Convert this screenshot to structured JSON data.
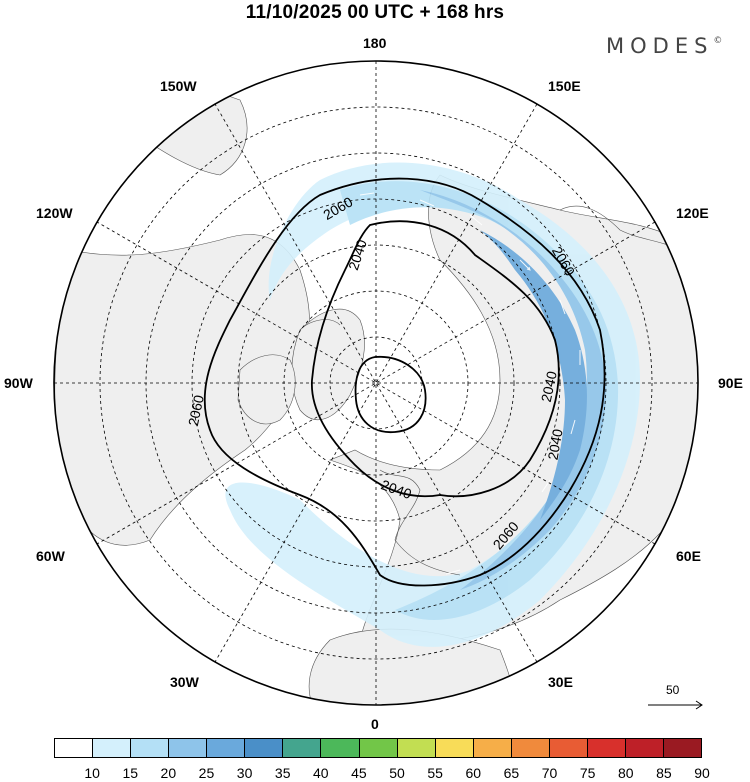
{
  "title": "11/10/2025  00 UTC  + 168 hrs",
  "brand": {
    "name": "MODES",
    "mark": "©"
  },
  "longitude_labels": {
    "top": "180",
    "top_left": "150W",
    "top_right": "150E",
    "upper_left": "120W",
    "upper_right": "120E",
    "left": "90W",
    "right": "90E",
    "lower_left": "60W",
    "lower_right": "60E",
    "bottom_left": "30W",
    "bottom_right": "30E",
    "bottom": "0"
  },
  "contour_labels": [
    "2060",
    "2040",
    "2060",
    "2040",
    "2060",
    "2040",
    "2040",
    "2060"
  ],
  "wind_reference": {
    "value": "50"
  },
  "colorbar": {
    "levels": [
      "10",
      "15",
      "20",
      "25",
      "30",
      "35",
      "40",
      "45",
      "50",
      "55",
      "60",
      "65",
      "70",
      "75",
      "80",
      "85",
      "90"
    ],
    "colors": [
      "#ffffff",
      "#d4f0fc",
      "#b4e0f6",
      "#8ec4ea",
      "#6aa9dc",
      "#4a8fc8",
      "#44a58e",
      "#4cb85a",
      "#72c648",
      "#c2de52",
      "#f8dc58",
      "#f6ae48",
      "#f08a3c",
      "#e85c34",
      "#d8302c",
      "#be2028",
      "#9a1a22"
    ]
  }
}
